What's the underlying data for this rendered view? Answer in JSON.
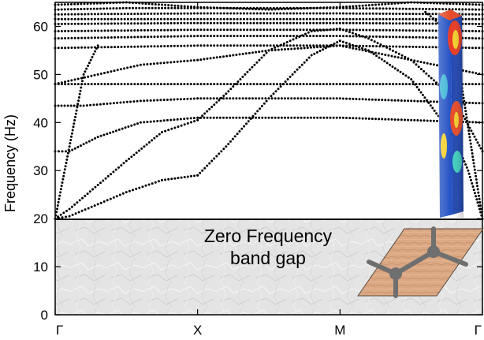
{
  "chart_data": {
    "type": "scatter",
    "title": "",
    "xlabel": "",
    "ylabel": "Frequency (Hz)",
    "x_ticks": [
      "Γ",
      "X",
      "M",
      "Γ"
    ],
    "x_tick_positions": [
      0,
      1,
      2,
      3
    ],
    "xlim": [
      0,
      3
    ],
    "y_ticks": [
      0,
      10,
      20,
      30,
      40,
      50,
      60
    ],
    "ylim": [
      0,
      65
    ],
    "grid": false,
    "band_gap": {
      "range": [
        0,
        20
      ],
      "label_line1": "Zero Frequency",
      "label_line2": "band gap"
    },
    "marker_color": "#000000",
    "gap_fill_color": "#e4e4e4",
    "unit_cell_color": "#dba884",
    "bands": [
      {
        "x": [
          0,
          0.1,
          0.3,
          0.5,
          0.75,
          1
        ],
        "y": [
          20,
          20.5,
          23,
          25.5,
          28,
          29
        ]
      },
      {
        "x": [
          0,
          0.1,
          0.3,
          0.5,
          0.75,
          1
        ],
        "y": [
          20,
          22,
          27,
          32,
          38,
          40.5
        ]
      },
      {
        "x": [
          1,
          1.2,
          1.5,
          1.8,
          2
        ],
        "y": [
          29,
          35,
          45,
          54,
          57
        ]
      },
      {
        "x": [
          1,
          1.2,
          1.5,
          1.8,
          2
        ],
        "y": [
          40.5,
          46,
          55,
          59,
          59.5
        ]
      },
      {
        "x": [
          2,
          2.2,
          2.5,
          2.8,
          2.9,
          3
        ],
        "y": [
          57,
          55,
          49,
          37,
          30,
          20
        ]
      },
      {
        "x": [
          2,
          2.2,
          2.5,
          2.8,
          3
        ],
        "y": [
          59.5,
          57.5,
          53,
          45,
          34
        ]
      },
      {
        "x": [
          0,
          0.1,
          0.3,
          0.6,
          1
        ],
        "y": [
          34,
          34,
          37,
          40,
          41
        ]
      },
      {
        "x": [
          1,
          1.5,
          2,
          2.5,
          3
        ],
        "y": [
          41,
          41,
          41,
          40.5,
          40
        ]
      },
      {
        "x": [
          0,
          0.2,
          0.6,
          1
        ],
        "y": [
          43.5,
          43.5,
          44.5,
          45
        ]
      },
      {
        "x": [
          1,
          1.5,
          2,
          2.5,
          3
        ],
        "y": [
          45,
          45,
          45,
          44.5,
          44
        ]
      },
      {
        "x": [
          0,
          1,
          2,
          3
        ],
        "y": [
          48,
          48,
          48,
          48
        ]
      },
      {
        "x": [
          0,
          0.3,
          0.6,
          1
        ],
        "y": [
          48,
          50,
          52,
          53
        ]
      },
      {
        "x": [
          1,
          1.5,
          2,
          2.5,
          3
        ],
        "y": [
          53,
          55,
          56,
          53,
          50
        ]
      },
      {
        "x": [
          0,
          0.1,
          0.2,
          0.3
        ],
        "y": [
          20,
          35,
          50,
          56
        ]
      },
      {
        "x": [
          0,
          1,
          2,
          3
        ],
        "y": [
          55.5,
          56,
          56,
          55.5
        ]
      },
      {
        "x": [
          0,
          1,
          2,
          3
        ],
        "y": [
          57.5,
          58,
          58,
          57.5
        ]
      },
      {
        "x": [
          0,
          1,
          2,
          3
        ],
        "y": [
          59,
          59.3,
          59.3,
          59
        ]
      },
      {
        "x": [
          0,
          1,
          2,
          3
        ],
        "y": [
          60.5,
          60.7,
          60.7,
          60.5
        ]
      },
      {
        "x": [
          0,
          1,
          2,
          3
        ],
        "y": [
          61.5,
          61.5,
          61.5,
          61.5
        ]
      },
      {
        "x": [
          0,
          1,
          2,
          3
        ],
        "y": [
          62.5,
          62.7,
          62.7,
          62.5
        ]
      },
      {
        "x": [
          0,
          0.5,
          1,
          1.5,
          2,
          2.5,
          3
        ],
        "y": [
          64.5,
          65,
          64,
          63.5,
          64,
          65,
          64.5
        ]
      },
      {
        "x": [
          0,
          0.5,
          1,
          2,
          3
        ],
        "y": [
          63.5,
          63.8,
          63.8,
          63.8,
          63.5
        ]
      },
      {
        "x": [
          2.6,
          2.8,
          3
        ],
        "y": [
          63,
          58,
          20
        ]
      }
    ]
  }
}
